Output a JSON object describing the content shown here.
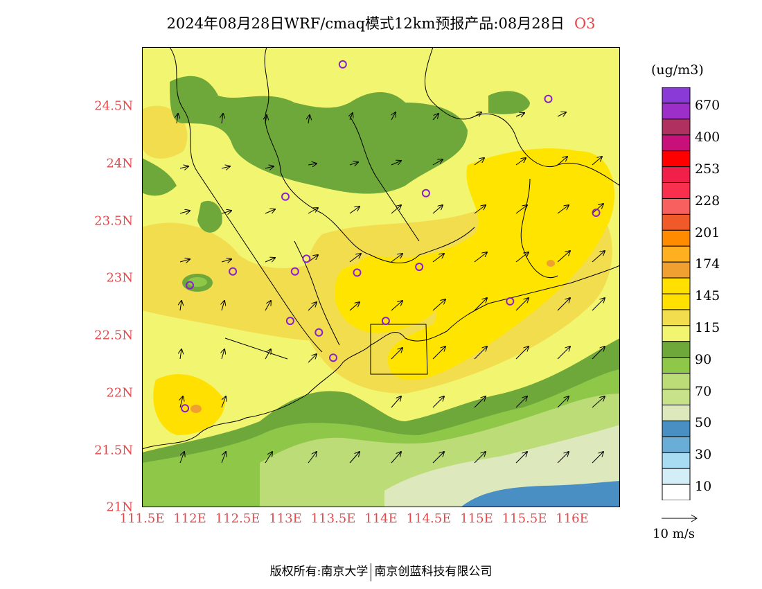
{
  "header": {
    "title": "2024年08月28日WRF/cmaq模式12km预报产品:08月28日",
    "species": "O3"
  },
  "axes": {
    "lat_labels": [
      "24.5N",
      "24N",
      "23.5N",
      "23N",
      "22.5N",
      "22N",
      "21.5N",
      "21N"
    ],
    "lon_labels": [
      "111.5E",
      "112E",
      "112.5E",
      "113E",
      "113.5E",
      "114E",
      "114.5E",
      "115E",
      "115.5E",
      "116E"
    ],
    "label_color": "#e8474a"
  },
  "legend": {
    "units": "(ug/m3)",
    "ticks": [
      "670",
      "400",
      "253",
      "228",
      "201",
      "174",
      "145",
      "115",
      "90",
      "70",
      "50",
      "30",
      "10"
    ],
    "colors_top_to_bottom": [
      "#8a3ad6",
      "#9b2fc8",
      "#b0305f",
      "#c8107a",
      "#ff0000",
      "#f0204a",
      "#f8304e",
      "#f86060",
      "#f05a2a",
      "#ff8c00",
      "#ffb020",
      "#f0a030",
      "#ffe000",
      "#ffe000",
      "#f2dd4e",
      "#f2f570",
      "#6fa83a",
      "#8fc849",
      "#bcdc78",
      "#c8e28a",
      "#dde9bd",
      "#4a8fc4",
      "#6aaed8",
      "#a8dcf2",
      "#d4eef8",
      "#ffffff"
    ]
  },
  "wind_reference": {
    "label": "10 m/s"
  },
  "footer": {
    "left": "版权所有:南京大学",
    "right": "南京创蓝科技有限公司"
  },
  "stations": [
    {
      "lon": 113.6,
      "lat": 24.85
    },
    {
      "lon": 115.75,
      "lat": 24.55
    },
    {
      "lon": 113.0,
      "lat": 23.7
    },
    {
      "lon": 114.47,
      "lat": 23.73
    },
    {
      "lon": 116.25,
      "lat": 23.56
    },
    {
      "lon": 112.45,
      "lat": 23.05
    },
    {
      "lon": 113.1,
      "lat": 23.05
    },
    {
      "lon": 113.22,
      "lat": 23.16
    },
    {
      "lon": 113.75,
      "lat": 23.04
    },
    {
      "lon": 114.4,
      "lat": 23.09
    },
    {
      "lon": 112.0,
      "lat": 22.93
    },
    {
      "lon": 115.35,
      "lat": 22.79
    },
    {
      "lon": 113.05,
      "lat": 22.62
    },
    {
      "lon": 113.35,
      "lat": 22.52
    },
    {
      "lon": 114.05,
      "lat": 22.62
    },
    {
      "lon": 113.5,
      "lat": 22.3
    },
    {
      "lon": 111.95,
      "lat": 21.86
    }
  ]
}
